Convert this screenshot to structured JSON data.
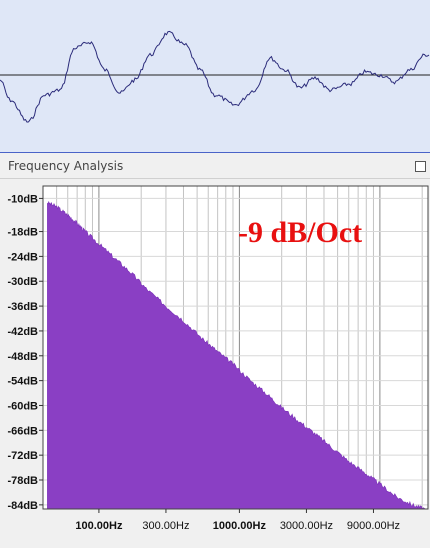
{
  "panel": {
    "title": "Frequency Analysis",
    "maximize_icon": "maximize-icon"
  },
  "annotation": "-9 dB/Oct",
  "colors": {
    "waveform_bg": "#dfe7f7",
    "waveform_line": "#2b2b7a",
    "spectrum_fill": "#8a3fc4",
    "annotation": "#e81010"
  },
  "chart_data": {
    "type": "area",
    "xscale": "log",
    "xlim": [
      40,
      22000
    ],
    "ylim": [
      -85,
      -7
    ],
    "y_ticks": [
      "-10dB",
      "-18dB",
      "-24dB",
      "-30dB",
      "-36dB",
      "-42dB",
      "-48dB",
      "-54dB",
      "-60dB",
      "-66dB",
      "-72dB",
      "-78dB",
      "-84dB"
    ],
    "x_tick_labels": [
      {
        "freq": 100,
        "label": "100.00Hz",
        "bold": true
      },
      {
        "freq": 300,
        "label": "300.00Hz",
        "bold": false
      },
      {
        "freq": 1000,
        "label": "1000.00Hz",
        "bold": true
      },
      {
        "freq": 3000,
        "label": "3000.00Hz",
        "bold": false
      },
      {
        "freq": 9000,
        "label": "9000.00Hz",
        "bold": false
      }
    ],
    "grid": true,
    "series": [
      {
        "x": [
          43,
          50,
          60,
          70,
          80,
          100,
          130,
          170,
          220,
          300,
          400,
          550,
          700,
          900,
          1200,
          1600,
          2000,
          2700,
          3500,
          4500,
          6000,
          8000,
          10000,
          13000,
          17000,
          21000
        ],
        "y": [
          -11,
          -12,
          -14,
          -16,
          -18,
          -21,
          -24.5,
          -28,
          -32,
          -36,
          -39.5,
          -44,
          -47,
          -50,
          -54,
          -57.5,
          -60.5,
          -64,
          -67,
          -70,
          -73.5,
          -76.5,
          -79,
          -82,
          -84,
          -85
        ]
      }
    ]
  }
}
